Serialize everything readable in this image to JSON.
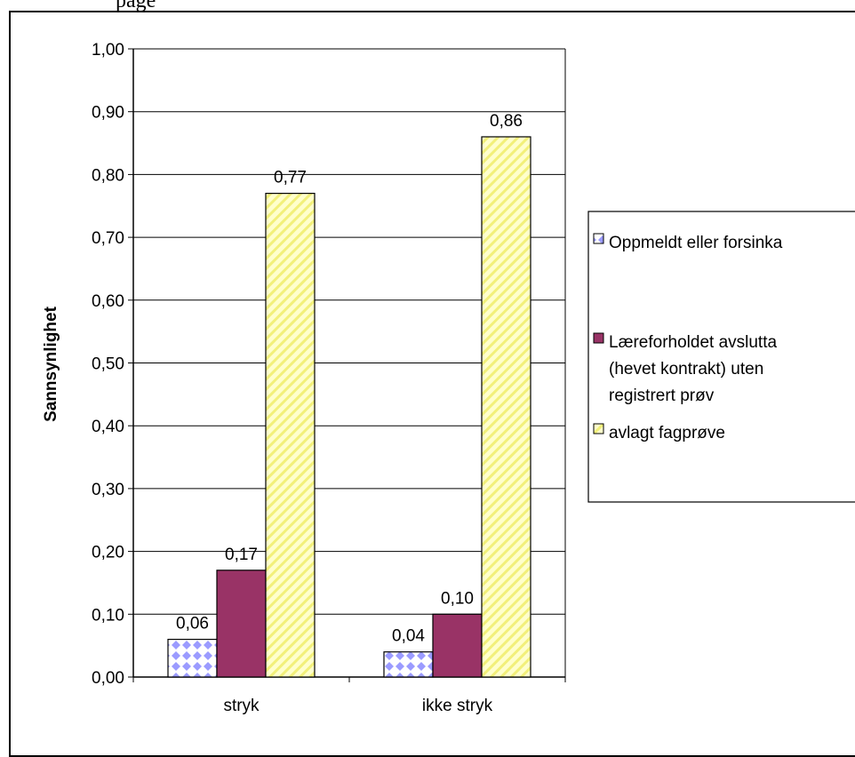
{
  "page": {
    "header_fragment": "page"
  },
  "chart_data": {
    "type": "bar",
    "categories": [
      "stryk",
      "ikke stryk"
    ],
    "ylabel": "Sannsynlighet",
    "xlabel": "",
    "ylim": [
      0,
      1
    ],
    "yticks": [
      "0,00",
      "0,10",
      "0,20",
      "0,30",
      "0,40",
      "0,50",
      "0,60",
      "0,70",
      "0,80",
      "0,90",
      "1,00"
    ],
    "grid": true,
    "legend_position": "right",
    "series": [
      {
        "name": "Oppmeldt eller forsinka",
        "values": [
          0.06,
          0.04
        ],
        "labels": [
          "0,06",
          "0,04"
        ],
        "color": "#ffffff",
        "pattern": "diamond",
        "pattern_color": "#9b9bff"
      },
      {
        "name": "Læreforholdet avslutta (hevet kontrakt) uten registrert prøv",
        "legend_lines": [
          "Læreforholdet avslutta",
          "(hevet kontrakt) uten",
          "registrert prøv"
        ],
        "values": [
          0.17,
          0.1
        ],
        "labels": [
          "0,17",
          "0,10"
        ],
        "color": "#993366",
        "pattern": "solid"
      },
      {
        "name": "avlagt fagprøve",
        "values": [
          0.77,
          0.86
        ],
        "labels": [
          "0,77",
          "0,86"
        ],
        "color": "#ffffcc",
        "pattern": "diagonal",
        "pattern_color": "#f0f060"
      }
    ]
  }
}
